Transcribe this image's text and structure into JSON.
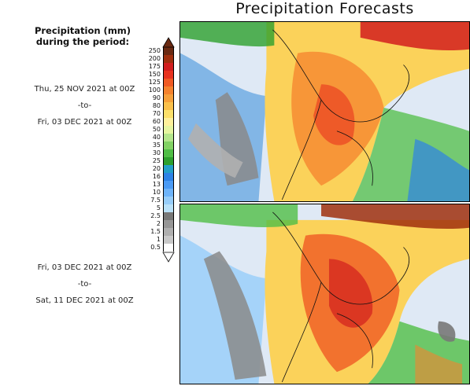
{
  "title": "Precipitation Forecasts",
  "legend": {
    "title_line1": "Precipitation (mm)",
    "title_line2": "during the period:",
    "levels": [
      "250",
      "200",
      "175",
      "150",
      "125",
      "100",
      "90",
      "80",
      "70",
      "60",
      "50",
      "40",
      "35",
      "30",
      "25",
      "20",
      "16",
      "13",
      "10",
      "7.5",
      "5",
      "2.5",
      "2",
      "1.5",
      "1",
      "0.5"
    ],
    "colors": [
      "#6b2a12",
      "#a0300e",
      "#d21e1e",
      "#e8321e",
      "#f05a23",
      "#f5822d",
      "#f7a03a",
      "#fbc04a",
      "#fde06a",
      "#fff09b",
      "#e6f5a0",
      "#b4e68c",
      "#82d264",
      "#50be46",
      "#2da02d",
      "#23a0c8",
      "#2d82e6",
      "#4b9bf5",
      "#6eb4fa",
      "#96cdfa",
      "#b9e1fa",
      "#787878",
      "#969696",
      "#afafaf",
      "#c8c8c8",
      "#ffffff"
    ]
  },
  "periods": [
    {
      "from": "Thu, 25 NOV 2021 at 00Z",
      "sep": "-to-",
      "to": "Fri, 03 DEC 2021 at 00Z"
    },
    {
      "from": "Fri, 03 DEC 2021 at 00Z",
      "sep": "-to-",
      "to": "Sat, 11 DEC 2021 at 00Z"
    }
  ]
}
